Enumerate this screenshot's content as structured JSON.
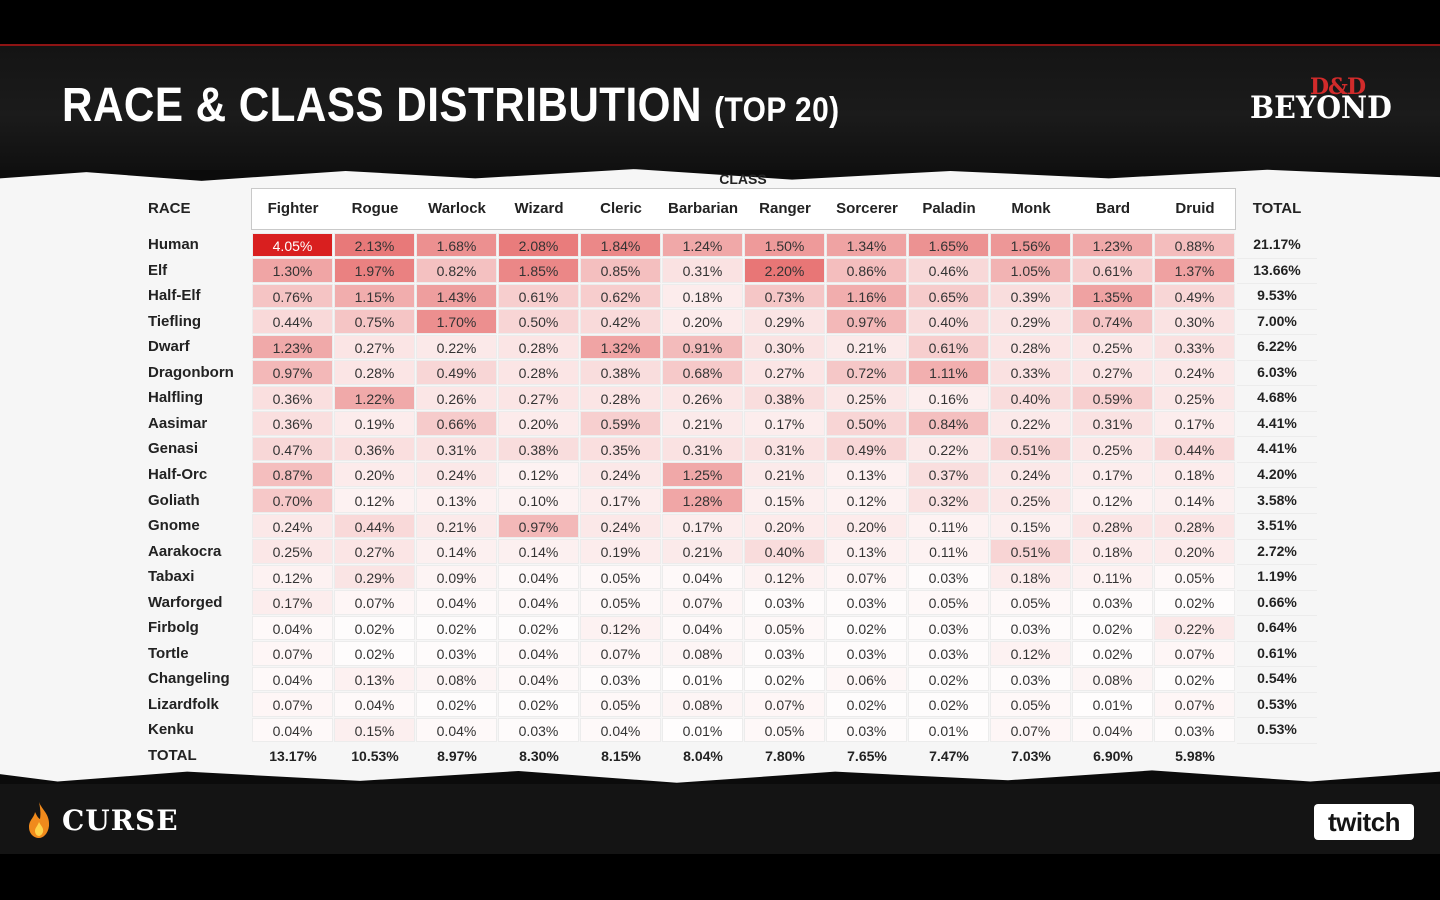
{
  "header": {
    "title_main": "RACE & CLASS DISTRIBUTION",
    "title_sub": "(TOP 20)"
  },
  "logos": {
    "dnd_top": "D&D",
    "dnd_bottom": "BEYOND",
    "curse": "CURSE",
    "twitch": "twitch"
  },
  "colors": {
    "accent_red": "#d12b2b",
    "heat_max": "#d91f1f",
    "heat_min": "#ffffff"
  },
  "chart_data": {
    "type": "heatmap",
    "title": "",
    "column_group_label": "CLASS",
    "row_header": "RACE",
    "total_label": "TOTAL",
    "columns": [
      "Fighter",
      "Rogue",
      "Warlock",
      "Wizard",
      "Cleric",
      "Barbarian",
      "Ranger",
      "Sorcerer",
      "Paladin",
      "Monk",
      "Bard",
      "Druid"
    ],
    "rows": [
      "Human",
      "Elf",
      "Half-Elf",
      "Tiefling",
      "Dwarf",
      "Dragonborn",
      "Halfling",
      "Aasimar",
      "Genasi",
      "Half-Orc",
      "Goliath",
      "Gnome",
      "Aarakocra",
      "Tabaxi",
      "Warforged",
      "Firbolg",
      "Tortle",
      "Changeling",
      "Lizardfolk",
      "Kenku"
    ],
    "values": [
      [
        4.05,
        2.13,
        1.68,
        2.08,
        1.84,
        1.24,
        1.5,
        1.34,
        1.65,
        1.56,
        1.23,
        0.88
      ],
      [
        1.3,
        1.97,
        0.82,
        1.85,
        0.85,
        0.31,
        2.2,
        0.86,
        0.46,
        1.05,
        0.61,
        1.37
      ],
      [
        0.76,
        1.15,
        1.43,
        0.61,
        0.62,
        0.18,
        0.73,
        1.16,
        0.65,
        0.39,
        1.35,
        0.49
      ],
      [
        0.44,
        0.75,
        1.7,
        0.5,
        0.42,
        0.2,
        0.29,
        0.97,
        0.4,
        0.29,
        0.74,
        0.3
      ],
      [
        1.23,
        0.27,
        0.22,
        0.28,
        1.32,
        0.91,
        0.3,
        0.21,
        0.61,
        0.28,
        0.25,
        0.33
      ],
      [
        0.97,
        0.28,
        0.49,
        0.28,
        0.38,
        0.68,
        0.27,
        0.72,
        1.11,
        0.33,
        0.27,
        0.24
      ],
      [
        0.36,
        1.22,
        0.26,
        0.27,
        0.28,
        0.26,
        0.38,
        0.25,
        0.16,
        0.4,
        0.59,
        0.25
      ],
      [
        0.36,
        0.19,
        0.66,
        0.2,
        0.59,
        0.21,
        0.17,
        0.5,
        0.84,
        0.22,
        0.31,
        0.17
      ],
      [
        0.47,
        0.36,
        0.31,
        0.38,
        0.35,
        0.31,
        0.31,
        0.49,
        0.22,
        0.51,
        0.25,
        0.44
      ],
      [
        0.87,
        0.2,
        0.24,
        0.12,
        0.24,
        1.25,
        0.21,
        0.13,
        0.37,
        0.24,
        0.17,
        0.18
      ],
      [
        0.7,
        0.12,
        0.13,
        0.1,
        0.17,
        1.28,
        0.15,
        0.12,
        0.32,
        0.25,
        0.12,
        0.14
      ],
      [
        0.24,
        0.44,
        0.21,
        0.97,
        0.24,
        0.17,
        0.2,
        0.2,
        0.11,
        0.15,
        0.28,
        0.28
      ],
      [
        0.25,
        0.27,
        0.14,
        0.14,
        0.19,
        0.21,
        0.4,
        0.13,
        0.11,
        0.51,
        0.18,
        0.2
      ],
      [
        0.12,
        0.29,
        0.09,
        0.04,
        0.05,
        0.04,
        0.12,
        0.07,
        0.03,
        0.18,
        0.11,
        0.05
      ],
      [
        0.17,
        0.07,
        0.04,
        0.04,
        0.05,
        0.07,
        0.03,
        0.03,
        0.05,
        0.05,
        0.03,
        0.02
      ],
      [
        0.04,
        0.02,
        0.02,
        0.02,
        0.12,
        0.04,
        0.05,
        0.02,
        0.03,
        0.03,
        0.02,
        0.22
      ],
      [
        0.07,
        0.02,
        0.03,
        0.04,
        0.07,
        0.08,
        0.03,
        0.03,
        0.03,
        0.12,
        0.02,
        0.07
      ],
      [
        0.04,
        0.13,
        0.08,
        0.04,
        0.03,
        0.01,
        0.02,
        0.06,
        0.02,
        0.03,
        0.08,
        0.02
      ],
      [
        0.07,
        0.04,
        0.02,
        0.02,
        0.05,
        0.08,
        0.07,
        0.02,
        0.02,
        0.05,
        0.01,
        0.07
      ],
      [
        0.04,
        0.15,
        0.04,
        0.03,
        0.04,
        0.01,
        0.05,
        0.03,
        0.01,
        0.07,
        0.04,
        0.03
      ]
    ],
    "row_totals": [
      21.17,
      13.66,
      9.53,
      7.0,
      6.22,
      6.03,
      4.68,
      4.41,
      4.41,
      4.2,
      3.58,
      3.51,
      2.72,
      1.19,
      0.66,
      0.64,
      0.61,
      0.54,
      0.53,
      0.53
    ],
    "column_totals": [
      13.17,
      10.53,
      8.97,
      8.3,
      8.15,
      8.04,
      7.8,
      7.65,
      7.47,
      7.03,
      6.9,
      5.98
    ],
    "unit": "%",
    "color_scale": "white-to-red"
  }
}
